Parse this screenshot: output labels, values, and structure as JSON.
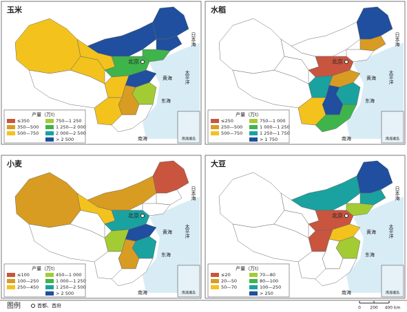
{
  "panels": [
    {
      "title": "玉米",
      "classes": [
        {
          "label": "≤350",
          "color": "#c9553f"
        },
        {
          "label": "350—500",
          "color": "#d89c22"
        },
        {
          "label": "500—750",
          "color": "#f3c21d"
        },
        {
          "label": "750—1 250",
          "color": "#a3cc34"
        },
        {
          "label": "1 250—2 000",
          "color": "#3fb44b"
        },
        {
          "label": "2 000—2 500",
          "color": "#1aa2a0"
        },
        {
          "label": "> 2 500",
          "color": "#1f4f9e"
        }
      ]
    },
    {
      "title": "水稻",
      "classes": [
        {
          "label": "≤250",
          "color": "#c9553f"
        },
        {
          "label": "250—500",
          "color": "#d89c22"
        },
        {
          "label": "500—750",
          "color": "#f3c21d"
        },
        {
          "label": "750—1 000",
          "color": "#a3cc34"
        },
        {
          "label": "1 000—1 250",
          "color": "#3fb44b"
        },
        {
          "label": "1 250—1 750",
          "color": "#1aa2a0"
        },
        {
          "label": "> 1 750",
          "color": "#1f4f9e"
        }
      ]
    },
    {
      "title": "小麦",
      "classes": [
        {
          "label": "≤100",
          "color": "#c9553f"
        },
        {
          "label": "100—250",
          "color": "#d89c22"
        },
        {
          "label": "250—450",
          "color": "#f3c21d"
        },
        {
          "label": "450—1 000",
          "color": "#a3cc34"
        },
        {
          "label": "1 000—1 250",
          "color": "#3fb44b"
        },
        {
          "label": "1 250—2 500",
          "color": "#1aa2a0"
        },
        {
          "label": "> 2 500",
          "color": "#1f4f9e"
        }
      ]
    },
    {
      "title": "大豆",
      "classes": [
        {
          "label": "≤20",
          "color": "#c9553f"
        },
        {
          "label": "20—50",
          "color": "#d89c22"
        },
        {
          "label": "50—70",
          "color": "#f3c21d"
        },
        {
          "label": "70—80",
          "color": "#a3cc34"
        },
        {
          "label": "80—100",
          "color": "#3fb44b"
        },
        {
          "label": "100—250",
          "color": "#1aa2a0"
        },
        {
          "label": "> 250",
          "color": "#1f4f9e"
        }
      ]
    }
  ],
  "legend_title": "产量（万t）",
  "map_labels": {
    "capital": "北京",
    "japan_sea": "日本海",
    "yellow_sea": "黄海",
    "east_sea": "东海",
    "pacific": "太平洋",
    "south_sea": "南海",
    "inset": "南海诸岛"
  },
  "footer": {
    "legend": "图例",
    "capital_symbol": "首都、首府",
    "scale": [
      "0",
      "200",
      "400 km"
    ]
  }
}
